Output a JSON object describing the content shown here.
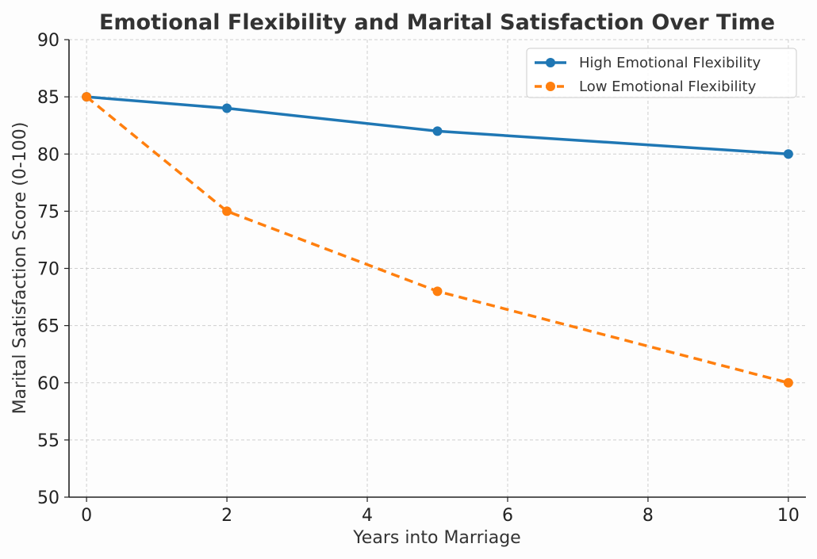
{
  "chart_data": {
    "type": "line",
    "title": "Emotional Flexibility and Marital Satisfaction Over Time",
    "xlabel": "Years into Marriage",
    "ylabel": "Marital Satisfaction Score (0-100)",
    "xlim": [
      -0.25,
      10.25
    ],
    "ylim": [
      50,
      90
    ],
    "xticks": [
      0,
      2,
      4,
      6,
      8,
      10
    ],
    "yticks": [
      50,
      55,
      60,
      65,
      70,
      75,
      80,
      85,
      90
    ],
    "x": [
      0,
      2,
      5,
      10
    ],
    "series": [
      {
        "name": "High Emotional Flexibility",
        "values": [
          85,
          84,
          82,
          80
        ],
        "color": "#1f77b4",
        "line_style": "solid",
        "marker": "circle"
      },
      {
        "name": "Low Emotional Flexibility",
        "values": [
          85,
          75,
          68,
          60
        ],
        "color": "#ff7f0e",
        "line_style": "dashed",
        "marker": "circle"
      }
    ],
    "grid": true,
    "grid_style": "dashed",
    "legend_position": "top-right"
  }
}
